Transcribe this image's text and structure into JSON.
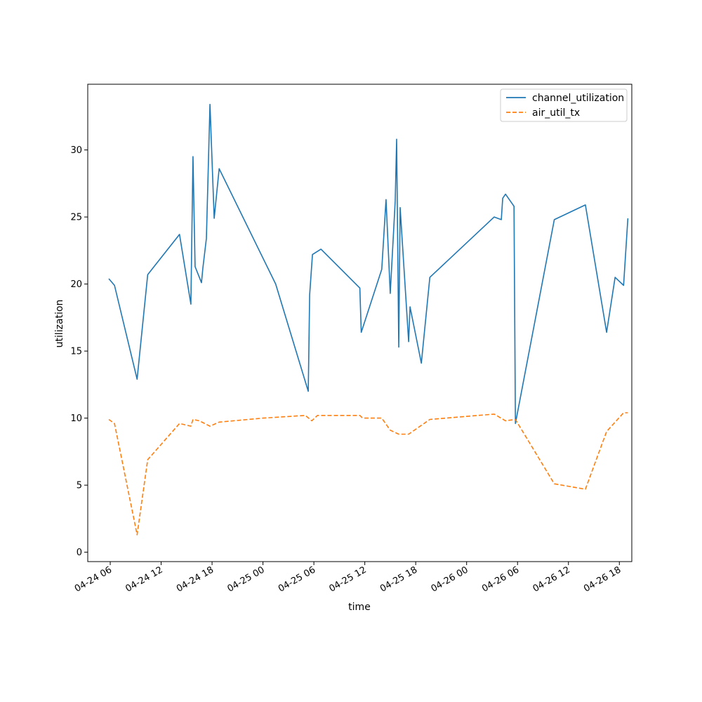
{
  "chart_data": {
    "type": "line",
    "xlabel": "time",
    "ylabel": "utilization",
    "ylim": [
      -0.7,
      34.9
    ],
    "xlim": [
      "2024-04-24 03:21",
      "2024-04-26 19:28"
    ],
    "x_ticks": [
      {
        "value": "2024-04-24 06:00",
        "label": "04-24 06"
      },
      {
        "value": "2024-04-24 12:00",
        "label": "04-24 12"
      },
      {
        "value": "2024-04-24 18:00",
        "label": "04-24 18"
      },
      {
        "value": "2024-04-25 00:00",
        "label": "04-25 00"
      },
      {
        "value": "2024-04-25 06:00",
        "label": "04-25 06"
      },
      {
        "value": "2024-04-25 12:00",
        "label": "04-25 12"
      },
      {
        "value": "2024-04-25 18:00",
        "label": "04-25 18"
      },
      {
        "value": "2024-04-26 00:00",
        "label": "04-26 00"
      },
      {
        "value": "2024-04-26 06:00",
        "label": "04-26 06"
      },
      {
        "value": "2024-04-26 12:00",
        "label": "04-26 12"
      },
      {
        "value": "2024-04-26 18:00",
        "label": "04-26 18"
      }
    ],
    "y_ticks": [
      0,
      5,
      10,
      15,
      20,
      25,
      30
    ],
    "grid": false,
    "legend_position": "top-right",
    "series": [
      {
        "name": "channel_utilization",
        "color": "#1f77b4",
        "style": "solid",
        "points": [
          [
            "2024-04-24 05:50",
            20.4
          ],
          [
            "2024-04-24 06:30",
            19.9
          ],
          [
            "2024-04-24 09:10",
            12.9
          ],
          [
            "2024-04-24 10:25",
            20.7
          ],
          [
            "2024-04-24 14:10",
            23.7
          ],
          [
            "2024-04-24 15:30",
            18.5
          ],
          [
            "2024-04-24 15:45",
            29.5
          ],
          [
            "2024-04-24 16:00",
            21.3
          ],
          [
            "2024-04-24 16:45",
            20.1
          ],
          [
            "2024-04-24 16:55",
            21.2
          ],
          [
            "2024-04-24 17:20",
            23.4
          ],
          [
            "2024-04-24 17:45",
            33.4
          ],
          [
            "2024-04-24 18:15",
            24.9
          ],
          [
            "2024-04-24 18:50",
            28.6
          ],
          [
            "2024-04-25 01:30",
            20.0
          ],
          [
            "2024-04-25 05:20",
            12.0
          ],
          [
            "2024-04-25 05:30",
            19.2
          ],
          [
            "2024-04-25 05:50",
            22.2
          ],
          [
            "2024-04-25 06:50",
            22.6
          ],
          [
            "2024-04-25 11:25",
            19.7
          ],
          [
            "2024-04-25 11:35",
            16.4
          ],
          [
            "2024-04-25 14:00",
            21.1
          ],
          [
            "2024-04-25 14:30",
            26.3
          ],
          [
            "2024-04-25 15:00",
            19.3
          ],
          [
            "2024-04-25 15:35",
            26.2
          ],
          [
            "2024-04-25 15:45",
            30.8
          ],
          [
            "2024-04-25 16:00",
            15.3
          ],
          [
            "2024-04-25 16:10",
            25.7
          ],
          [
            "2024-04-25 17:10",
            15.7
          ],
          [
            "2024-04-25 17:20",
            18.3
          ],
          [
            "2024-04-25 18:40",
            14.1
          ],
          [
            "2024-04-25 19:40",
            20.5
          ],
          [
            "2024-04-26 03:15",
            25.0
          ],
          [
            "2024-04-26 04:05",
            24.8
          ],
          [
            "2024-04-26 04:15",
            26.4
          ],
          [
            "2024-04-26 04:35",
            26.7
          ],
          [
            "2024-04-26 05:35",
            25.8
          ],
          [
            "2024-04-26 05:45",
            9.6
          ],
          [
            "2024-04-26 10:20",
            24.8
          ],
          [
            "2024-04-26 14:00",
            25.9
          ],
          [
            "2024-04-26 16:30",
            16.4
          ],
          [
            "2024-04-26 17:30",
            20.5
          ],
          [
            "2024-04-26 18:30",
            19.9
          ],
          [
            "2024-04-26 19:00",
            24.9
          ]
        ]
      },
      {
        "name": "air_util_tx",
        "color": "#ff7f0e",
        "style": "dashed",
        "points": [
          [
            "2024-04-24 05:50",
            9.9
          ],
          [
            "2024-04-24 06:30",
            9.6
          ],
          [
            "2024-04-24 09:10",
            1.3
          ],
          [
            "2024-04-24 10:25",
            6.9
          ],
          [
            "2024-04-24 14:10",
            9.6
          ],
          [
            "2024-04-24 15:30",
            9.4
          ],
          [
            "2024-04-24 15:45",
            9.9
          ],
          [
            "2024-04-24 16:30",
            9.8
          ],
          [
            "2024-04-24 17:45",
            9.4
          ],
          [
            "2024-04-24 18:50",
            9.7
          ],
          [
            "2024-04-25 00:00",
            10.0
          ],
          [
            "2024-04-25 05:00",
            10.2
          ],
          [
            "2024-04-25 05:45",
            9.8
          ],
          [
            "2024-04-25 06:25",
            10.2
          ],
          [
            "2024-04-25 11:25",
            10.2
          ],
          [
            "2024-04-25 11:45",
            10.0
          ],
          [
            "2024-04-25 14:00",
            10.0
          ],
          [
            "2024-04-25 15:00",
            9.1
          ],
          [
            "2024-04-25 16:00",
            8.8
          ],
          [
            "2024-04-25 17:10",
            8.8
          ],
          [
            "2024-04-25 19:40",
            9.9
          ],
          [
            "2024-04-26 03:15",
            10.3
          ],
          [
            "2024-04-26 04:35",
            9.8
          ],
          [
            "2024-04-26 05:45",
            9.9
          ],
          [
            "2024-04-26 10:20",
            5.1
          ],
          [
            "2024-04-26 14:00",
            4.7
          ],
          [
            "2024-04-26 16:30",
            9.0
          ],
          [
            "2024-04-26 18:30",
            10.4
          ],
          [
            "2024-04-26 19:00",
            10.4
          ]
        ]
      }
    ]
  }
}
